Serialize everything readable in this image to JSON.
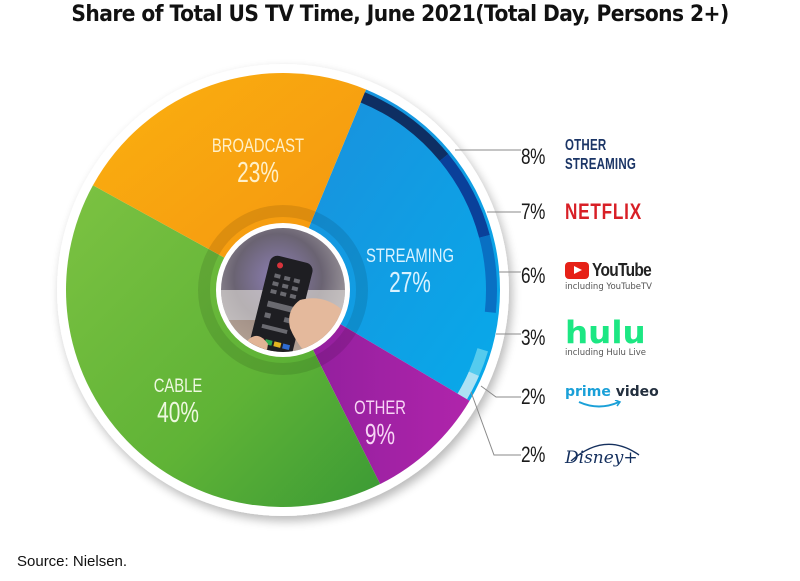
{
  "title": "Share of Total US TV Time, June 2021(Total Day, Persons 2+)",
  "source": "Source: Nielsen.",
  "center_image": "tv-remote-photo",
  "slices": [
    {
      "key": "streaming",
      "label": "STREAMING",
      "pct": "27%",
      "color": "#0aa2e3",
      "text_color": "#d9f2ff"
    },
    {
      "key": "other",
      "label": "OTHER",
      "pct": "9%",
      "color": "#a222a8",
      "text_color": "#f7d5f5"
    },
    {
      "key": "cable",
      "label": "CABLE",
      "pct": "40%",
      "color": "#6cba3a",
      "text_color": "#eef8e0"
    },
    {
      "key": "broadcast",
      "label": "BROADCAST",
      "pct": "23%",
      "color": "#f7a30e",
      "text_color": "#fff0c9"
    }
  ],
  "streaming_breakdown": [
    {
      "key": "other_streaming",
      "pct": "8%",
      "label_line1": "OTHER",
      "label_line2": "STREAMING",
      "color": "#0e2f63"
    },
    {
      "key": "netflix",
      "pct": "7%",
      "label": "NETFLIX",
      "color": "#0a409a"
    },
    {
      "key": "youtube",
      "pct": "6%",
      "label": "YouTube",
      "note": "including YouTubeTV",
      "color": "#0970c3"
    },
    {
      "key": "hulu",
      "pct": "3%",
      "label": "hulu",
      "note": "including Hulu Live",
      "color": "#0aa2e3"
    },
    {
      "key": "prime_video",
      "pct": "2%",
      "label_part1": "prime",
      "label_part2": "video",
      "color": "#55cbee"
    },
    {
      "key": "disney_plus",
      "pct": "2%",
      "label": "Disney+",
      "color": "#ade2f4"
    }
  ],
  "chart_data": {
    "type": "pie",
    "title": "Share of Total US TV Time, June 2021(Total Day, Persons 2+)",
    "categories": [
      "Streaming",
      "Other",
      "Cable",
      "Broadcast"
    ],
    "values": [
      27,
      9,
      40,
      23
    ],
    "unit": "%",
    "sub_series": {
      "parent": "Streaming",
      "categories": [
        "Other Streaming",
        "Netflix",
        "YouTube (including YouTubeTV)",
        "Hulu (including Hulu Live)",
        "Prime Video",
        "Disney+"
      ],
      "values": [
        8,
        7,
        6,
        3,
        2,
        2
      ]
    },
    "annotation": "Source: Nielsen.",
    "legend_position": "right"
  }
}
